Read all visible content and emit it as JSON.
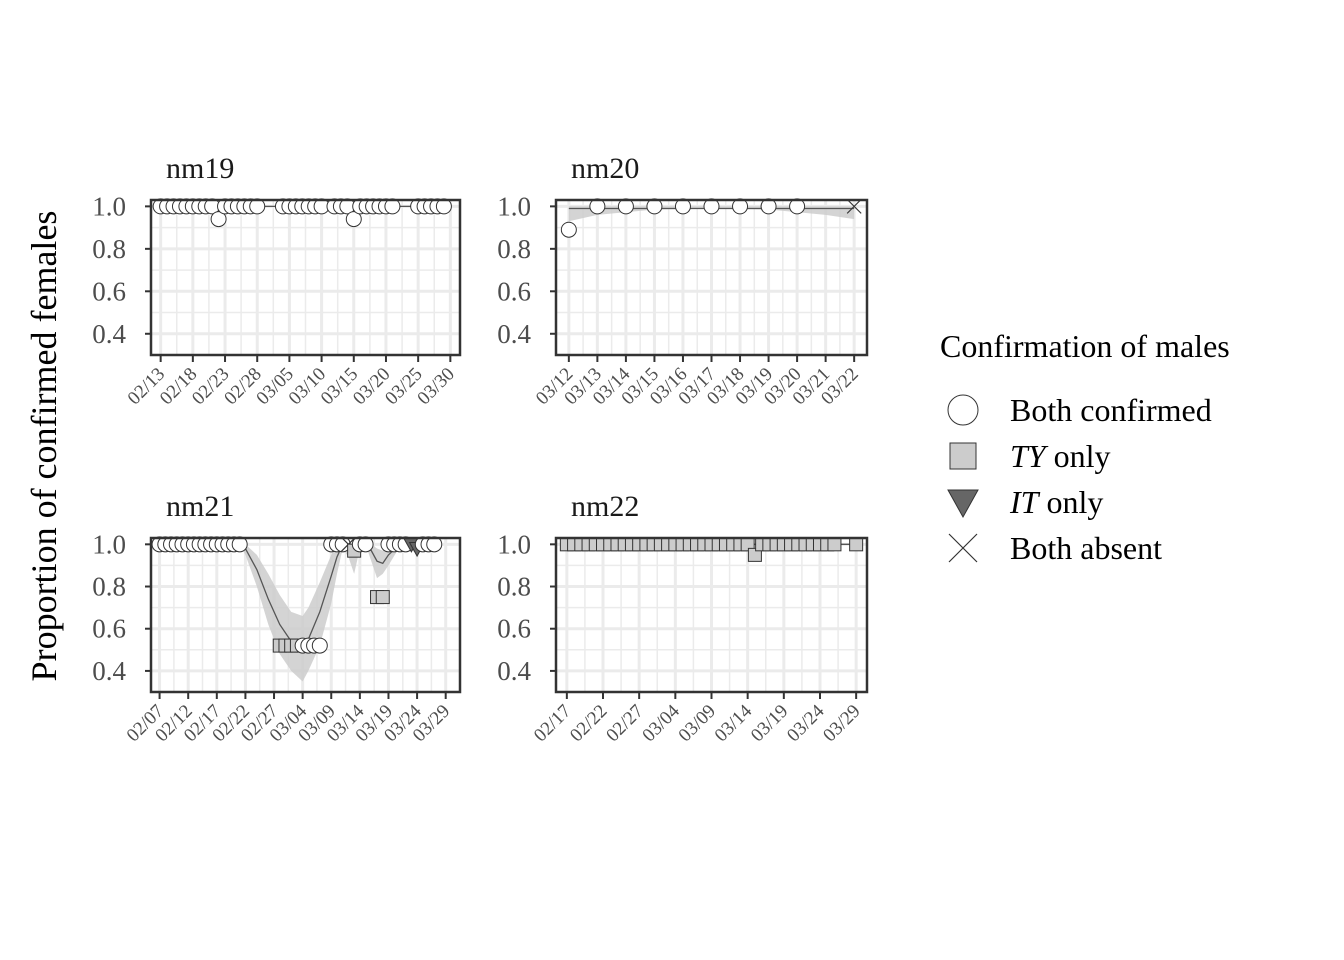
{
  "chart_data": {
    "type": "scatter",
    "ylabel": "Proportion of confirmed females",
    "ylim": [
      0.3,
      1.03
    ],
    "yticks": [
      1.0,
      0.8,
      0.6,
      0.4
    ],
    "ytick_labels": [
      "1.0",
      "0.8",
      "0.6",
      "0.4"
    ],
    "grid": true,
    "legend": {
      "title": "Confirmation of males",
      "placement": "right",
      "entries": [
        {
          "key": "both",
          "shape": "circle",
          "label_italic": "",
          "label_rest": "Both confirmed"
        },
        {
          "key": "ty",
          "shape": "square",
          "label_italic": "TY",
          "label_rest": " only"
        },
        {
          "key": "it",
          "shape": "triangle",
          "label_italic": "IT",
          "label_rest": " only"
        },
        {
          "key": "none",
          "shape": "cross",
          "label_italic": "",
          "label_rest": "Both absent"
        }
      ]
    },
    "colors": {
      "both": "#ffffff",
      "ty": "#cccccc",
      "it": "#666666",
      "line": "#555555",
      "ribbon": "#cccccc",
      "grid": "#ebebeb",
      "panel_bg": "#ffffff"
    },
    "panels": [
      {
        "name": "nm19",
        "x_start": "2020-02-13",
        "x_range_days": [
          -1.5,
          46.5
        ],
        "x_ticks": [
          0,
          5,
          10,
          15,
          20,
          25,
          30,
          35,
          40,
          45
        ],
        "x_tick_labels": [
          "02/13",
          "02/18",
          "02/23",
          "02/28",
          "03/05",
          "03/10",
          "03/15",
          "03/20",
          "03/25",
          "03/30"
        ],
        "fit": {
          "x": [
            0,
            44
          ],
          "y": [
            1.0,
            1.0
          ]
        },
        "ribbon": {
          "x": [
            0,
            44
          ],
          "lo": [
            1.0,
            1.0
          ],
          "hi": [
            1.0,
            1.0
          ]
        },
        "points": [
          {
            "x": 0,
            "y": 1.0,
            "cat": "both"
          },
          {
            "x": 1,
            "y": 1.0,
            "cat": "both"
          },
          {
            "x": 2,
            "y": 1.0,
            "cat": "both"
          },
          {
            "x": 3,
            "y": 1.0,
            "cat": "both"
          },
          {
            "x": 4,
            "y": 1.0,
            "cat": "both"
          },
          {
            "x": 5,
            "y": 1.0,
            "cat": "both"
          },
          {
            "x": 6,
            "y": 1.0,
            "cat": "both"
          },
          {
            "x": 7,
            "y": 1.0,
            "cat": "both"
          },
          {
            "x": 8,
            "y": 1.0,
            "cat": "both"
          },
          {
            "x": 9,
            "y": 0.94,
            "cat": "both"
          },
          {
            "x": 10,
            "y": 1.0,
            "cat": "both"
          },
          {
            "x": 11,
            "y": 1.0,
            "cat": "both"
          },
          {
            "x": 12,
            "y": 1.0,
            "cat": "both"
          },
          {
            "x": 13,
            "y": 1.0,
            "cat": "both"
          },
          {
            "x": 14,
            "y": 1.0,
            "cat": "both"
          },
          {
            "x": 15,
            "y": 1.0,
            "cat": "both"
          },
          {
            "x": 19,
            "y": 1.0,
            "cat": "both"
          },
          {
            "x": 20,
            "y": 1.0,
            "cat": "both"
          },
          {
            "x": 21,
            "y": 1.0,
            "cat": "both"
          },
          {
            "x": 22,
            "y": 1.0,
            "cat": "both"
          },
          {
            "x": 23,
            "y": 1.0,
            "cat": "both"
          },
          {
            "x": 24,
            "y": 1.0,
            "cat": "both"
          },
          {
            "x": 25,
            "y": 1.0,
            "cat": "both"
          },
          {
            "x": 27,
            "y": 1.0,
            "cat": "both"
          },
          {
            "x": 28,
            "y": 1.0,
            "cat": "both"
          },
          {
            "x": 29,
            "y": 1.0,
            "cat": "both"
          },
          {
            "x": 30,
            "y": 0.94,
            "cat": "both"
          },
          {
            "x": 31,
            "y": 1.0,
            "cat": "both"
          },
          {
            "x": 32,
            "y": 1.0,
            "cat": "both"
          },
          {
            "x": 33,
            "y": 1.0,
            "cat": "both"
          },
          {
            "x": 34,
            "y": 1.0,
            "cat": "both"
          },
          {
            "x": 35,
            "y": 1.0,
            "cat": "both"
          },
          {
            "x": 36,
            "y": 1.0,
            "cat": "both"
          },
          {
            "x": 40,
            "y": 1.0,
            "cat": "both"
          },
          {
            "x": 41,
            "y": 1.0,
            "cat": "both"
          },
          {
            "x": 42,
            "y": 1.0,
            "cat": "both"
          },
          {
            "x": 43,
            "y": 1.0,
            "cat": "both"
          },
          {
            "x": 44,
            "y": 1.0,
            "cat": "both"
          }
        ]
      },
      {
        "name": "nm20",
        "x_start": "2020-03-12",
        "x_range_days": [
          -0.45,
          10.45
        ],
        "x_ticks": [
          0,
          1,
          2,
          3,
          4,
          5,
          6,
          7,
          8,
          9,
          10
        ],
        "x_tick_labels": [
          "03/12",
          "03/13",
          "03/14",
          "03/15",
          "03/16",
          "03/17",
          "03/18",
          "03/19",
          "03/20",
          "03/21",
          "03/22"
        ],
        "fit": {
          "x": [
            0,
            10
          ],
          "y": [
            0.99,
            0.99
          ]
        },
        "ribbon": {
          "x": [
            0,
            1,
            3,
            5,
            7,
            9,
            10
          ],
          "lo": [
            0.93,
            0.96,
            0.985,
            0.99,
            0.985,
            0.96,
            0.94
          ],
          "hi": [
            1.0,
            1.0,
            1.0,
            1.0,
            1.0,
            1.0,
            1.0
          ]
        },
        "points": [
          {
            "x": 0,
            "y": 0.89,
            "cat": "both"
          },
          {
            "x": 1,
            "y": 1.0,
            "cat": "both"
          },
          {
            "x": 2,
            "y": 1.0,
            "cat": "both"
          },
          {
            "x": 3,
            "y": 1.0,
            "cat": "both"
          },
          {
            "x": 4,
            "y": 1.0,
            "cat": "both"
          },
          {
            "x": 5,
            "y": 1.0,
            "cat": "both"
          },
          {
            "x": 6,
            "y": 1.0,
            "cat": "both"
          },
          {
            "x": 7,
            "y": 1.0,
            "cat": "both"
          },
          {
            "x": 8,
            "y": 1.0,
            "cat": "both"
          },
          {
            "x": 10,
            "y": 1.0,
            "cat": "none"
          }
        ]
      },
      {
        "name": "nm21",
        "x_start": "2020-02-07",
        "x_range_days": [
          -1.5,
          52.5
        ],
        "x_ticks": [
          0,
          5,
          10,
          15,
          20,
          25,
          30,
          35,
          40,
          45,
          50
        ],
        "x_tick_labels": [
          "02/07",
          "02/12",
          "02/17",
          "02/22",
          "02/27",
          "03/04",
          "03/09",
          "03/14",
          "03/19",
          "03/24",
          "03/29"
        ],
        "fit": {
          "x": [
            0,
            14,
            15,
            17,
            19,
            21,
            23,
            25,
            26,
            28,
            30,
            31,
            32,
            33,
            34,
            35,
            36,
            37,
            38,
            39,
            40,
            42,
            45,
            48
          ],
          "y": [
            1.0,
            1.0,
            0.98,
            0.88,
            0.74,
            0.62,
            0.54,
            0.52,
            0.55,
            0.68,
            0.85,
            0.94,
            1.0,
            0.99,
            0.97,
            1.0,
            1.0,
            0.97,
            0.92,
            0.91,
            0.95,
            1.0,
            0.99,
            1.0
          ]
        },
        "ribbon": {
          "x": [
            0,
            14,
            15,
            17,
            19,
            21,
            23,
            25,
            26,
            28,
            30,
            31,
            32,
            33,
            34,
            35,
            36,
            37,
            38,
            39,
            40,
            42,
            45,
            48
          ],
          "lo": [
            1.0,
            1.0,
            0.95,
            0.8,
            0.62,
            0.48,
            0.4,
            0.35,
            0.4,
            0.52,
            0.72,
            0.86,
            0.98,
            0.94,
            0.86,
            0.98,
            1.0,
            0.92,
            0.84,
            0.86,
            0.9,
            0.99,
            0.96,
            1.0
          ],
          "hi": [
            1.0,
            1.0,
            1.0,
            0.95,
            0.86,
            0.76,
            0.68,
            0.66,
            0.7,
            0.82,
            0.95,
            1.0,
            1.0,
            1.0,
            1.0,
            1.0,
            1.0,
            1.0,
            0.98,
            0.97,
            1.0,
            1.0,
            1.0,
            1.0
          ]
        },
        "points": [
          {
            "x": 0,
            "y": 1.0,
            "cat": "both"
          },
          {
            "x": 1,
            "y": 1.0,
            "cat": "both"
          },
          {
            "x": 2,
            "y": 1.0,
            "cat": "both"
          },
          {
            "x": 3,
            "y": 1.0,
            "cat": "both"
          },
          {
            "x": 4,
            "y": 1.0,
            "cat": "both"
          },
          {
            "x": 5,
            "y": 1.0,
            "cat": "both"
          },
          {
            "x": 6,
            "y": 1.0,
            "cat": "both"
          },
          {
            "x": 7,
            "y": 1.0,
            "cat": "both"
          },
          {
            "x": 8,
            "y": 1.0,
            "cat": "both"
          },
          {
            "x": 9,
            "y": 1.0,
            "cat": "both"
          },
          {
            "x": 10,
            "y": 1.0,
            "cat": "both"
          },
          {
            "x": 11,
            "y": 1.0,
            "cat": "both"
          },
          {
            "x": 12,
            "y": 1.0,
            "cat": "both"
          },
          {
            "x": 13,
            "y": 1.0,
            "cat": "both"
          },
          {
            "x": 14,
            "y": 1.0,
            "cat": "both"
          },
          {
            "x": 21,
            "y": 0.52,
            "cat": "ty"
          },
          {
            "x": 22,
            "y": 0.52,
            "cat": "ty"
          },
          {
            "x": 23,
            "y": 0.52,
            "cat": "ty"
          },
          {
            "x": 24,
            "y": 0.52,
            "cat": "ty"
          },
          {
            "x": 25,
            "y": 0.52,
            "cat": "both"
          },
          {
            "x": 26,
            "y": 0.52,
            "cat": "both"
          },
          {
            "x": 27,
            "y": 0.52,
            "cat": "both"
          },
          {
            "x": 28,
            "y": 0.52,
            "cat": "both"
          },
          {
            "x": 30,
            "y": 1.0,
            "cat": "both"
          },
          {
            "x": 31,
            "y": 1.0,
            "cat": "both"
          },
          {
            "x": 32,
            "y": 1.0,
            "cat": "both"
          },
          {
            "x": 33,
            "y": 1.0,
            "cat": "none"
          },
          {
            "x": 34,
            "y": 0.97,
            "cat": "ty"
          },
          {
            "x": 35,
            "y": 1.0,
            "cat": "both"
          },
          {
            "x": 36,
            "y": 1.0,
            "cat": "both"
          },
          {
            "x": 38,
            "y": 0.75,
            "cat": "ty"
          },
          {
            "x": 39,
            "y": 0.75,
            "cat": "ty"
          },
          {
            "x": 40,
            "y": 1.0,
            "cat": "both"
          },
          {
            "x": 41,
            "y": 1.0,
            "cat": "both"
          },
          {
            "x": 42,
            "y": 1.0,
            "cat": "both"
          },
          {
            "x": 43,
            "y": 1.0,
            "cat": "both"
          },
          {
            "x": 44,
            "y": 1.0,
            "cat": "it"
          },
          {
            "x": 45,
            "y": 0.98,
            "cat": "it"
          },
          {
            "x": 46,
            "y": 1.0,
            "cat": "both"
          },
          {
            "x": 47,
            "y": 1.0,
            "cat": "both"
          },
          {
            "x": 48,
            "y": 1.0,
            "cat": "both"
          }
        ]
      },
      {
        "name": "nm22",
        "x_start": "2020-02-17",
        "x_range_days": [
          -1.5,
          41.5
        ],
        "x_ticks": [
          0,
          5,
          10,
          15,
          20,
          25,
          30,
          35,
          40
        ],
        "x_tick_labels": [
          "02/17",
          "02/22",
          "02/27",
          "03/04",
          "03/09",
          "03/14",
          "03/19",
          "03/24",
          "03/29"
        ],
        "fit": {
          "x": [
            0,
            40
          ],
          "y": [
            1.0,
            1.0
          ]
        },
        "ribbon": {
          "x": [
            0,
            40
          ],
          "lo": [
            1.0,
            1.0
          ],
          "hi": [
            1.0,
            1.0
          ]
        },
        "points": [
          {
            "x": 0,
            "y": 1.0,
            "cat": "ty"
          },
          {
            "x": 1,
            "y": 1.0,
            "cat": "ty"
          },
          {
            "x": 2,
            "y": 1.0,
            "cat": "ty"
          },
          {
            "x": 3,
            "y": 1.0,
            "cat": "ty"
          },
          {
            "x": 4,
            "y": 1.0,
            "cat": "ty"
          },
          {
            "x": 5,
            "y": 1.0,
            "cat": "ty"
          },
          {
            "x": 6,
            "y": 1.0,
            "cat": "ty"
          },
          {
            "x": 7,
            "y": 1.0,
            "cat": "ty"
          },
          {
            "x": 8,
            "y": 1.0,
            "cat": "ty"
          },
          {
            "x": 9,
            "y": 1.0,
            "cat": "ty"
          },
          {
            "x": 10,
            "y": 1.0,
            "cat": "ty"
          },
          {
            "x": 11,
            "y": 1.0,
            "cat": "ty"
          },
          {
            "x": 12,
            "y": 1.0,
            "cat": "ty"
          },
          {
            "x": 13,
            "y": 1.0,
            "cat": "ty"
          },
          {
            "x": 14,
            "y": 1.0,
            "cat": "ty"
          },
          {
            "x": 15,
            "y": 1.0,
            "cat": "ty"
          },
          {
            "x": 16,
            "y": 1.0,
            "cat": "ty"
          },
          {
            "x": 17,
            "y": 1.0,
            "cat": "ty"
          },
          {
            "x": 18,
            "y": 1.0,
            "cat": "ty"
          },
          {
            "x": 19,
            "y": 1.0,
            "cat": "ty"
          },
          {
            "x": 20,
            "y": 1.0,
            "cat": "ty"
          },
          {
            "x": 21,
            "y": 1.0,
            "cat": "ty"
          },
          {
            "x": 22,
            "y": 1.0,
            "cat": "ty"
          },
          {
            "x": 23,
            "y": 1.0,
            "cat": "ty"
          },
          {
            "x": 24,
            "y": 1.0,
            "cat": "ty"
          },
          {
            "x": 25,
            "y": 1.0,
            "cat": "ty"
          },
          {
            "x": 26,
            "y": 0.95,
            "cat": "ty"
          },
          {
            "x": 27,
            "y": 1.0,
            "cat": "ty"
          },
          {
            "x": 28,
            "y": 1.0,
            "cat": "ty"
          },
          {
            "x": 29,
            "y": 1.0,
            "cat": "ty"
          },
          {
            "x": 30,
            "y": 1.0,
            "cat": "ty"
          },
          {
            "x": 31,
            "y": 1.0,
            "cat": "ty"
          },
          {
            "x": 32,
            "y": 1.0,
            "cat": "ty"
          },
          {
            "x": 33,
            "y": 1.0,
            "cat": "ty"
          },
          {
            "x": 34,
            "y": 1.0,
            "cat": "ty"
          },
          {
            "x": 35,
            "y": 1.0,
            "cat": "ty"
          },
          {
            "x": 36,
            "y": 1.0,
            "cat": "ty"
          },
          {
            "x": 37,
            "y": 1.0,
            "cat": "ty"
          },
          {
            "x": 40,
            "y": 1.0,
            "cat": "ty"
          }
        ]
      }
    ]
  }
}
